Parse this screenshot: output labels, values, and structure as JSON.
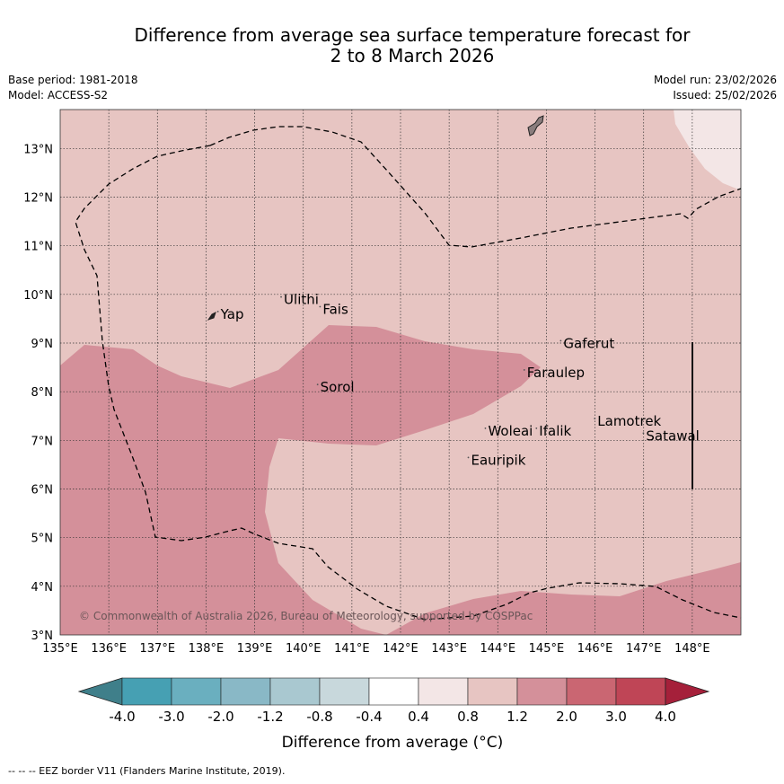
{
  "title": {
    "line1": "Difference from average sea surface temperature forecast for",
    "line2": "2 to 8 March 2026"
  },
  "meta": {
    "base_period": "Base period: 1981-2018",
    "model": "Model: ACCESS-S2",
    "model_run": "Model run: 23/02/2026",
    "issued": "Issued: 25/02/2026"
  },
  "map": {
    "lon_range": [
      135.0,
      149.0
    ],
    "lat_range": [
      3.0,
      13.8
    ],
    "lon_ticks": [
      "135°E",
      "136°E",
      "137°E",
      "138°E",
      "139°E",
      "140°E",
      "141°E",
      "142°E",
      "143°E",
      "144°E",
      "145°E",
      "146°E",
      "147°E",
      "148°E"
    ],
    "lat_ticks": [
      "3°N",
      "4°N",
      "5°N",
      "6°N",
      "7°N",
      "8°N",
      "9°N",
      "10°N",
      "11°N",
      "12°N",
      "13°N"
    ],
    "copyright": "© Commonwealth of Australia 2026, Bureau of Meteorology, supported by COSPPac",
    "places": [
      {
        "name": "Yap",
        "lon": 138.3,
        "lat": 9.5
      },
      {
        "name": "Ulithi",
        "lon": 139.6,
        "lat": 9.8
      },
      {
        "name": "Fais",
        "lon": 140.4,
        "lat": 9.6
      },
      {
        "name": "Sorol",
        "lon": 140.35,
        "lat": 8.0
      },
      {
        "name": "Gaferut",
        "lon": 145.35,
        "lat": 8.9
      },
      {
        "name": "Faraulep",
        "lon": 144.6,
        "lat": 8.3
      },
      {
        "name": "Woleai",
        "lon": 143.8,
        "lat": 7.1
      },
      {
        "name": "Ifalik",
        "lon": 144.85,
        "lat": 7.1
      },
      {
        "name": "Lamotrek",
        "lon": 146.05,
        "lat": 7.3
      },
      {
        "name": "Satawal",
        "lon": 147.05,
        "lat": 7.0
      },
      {
        "name": "Eauripik",
        "lon": 143.45,
        "lat": 6.5
      }
    ]
  },
  "colorbar": {
    "ticks": [
      "-4.0",
      "-3.0",
      "-2.0",
      "-1.2",
      "-0.8",
      "-0.4",
      "0.4",
      "0.8",
      "1.2",
      "2.0",
      "3.0",
      "4.0"
    ],
    "colors": [
      "#3f7f8a",
      "#46a0b3",
      "#6aafbf",
      "#89b8c6",
      "#a9c8d0",
      "#c8d8dc",
      "#ffffff",
      "#f3e6e6",
      "#e7c5c2",
      "#d4909a",
      "#ca6672",
      "#bf4556",
      "#a5203a"
    ],
    "label": "Difference from average (°C)"
  },
  "legend": {
    "eez_note": "--  --  -- EEZ border V11 (Flanders Marine Institute, 2019)."
  }
}
